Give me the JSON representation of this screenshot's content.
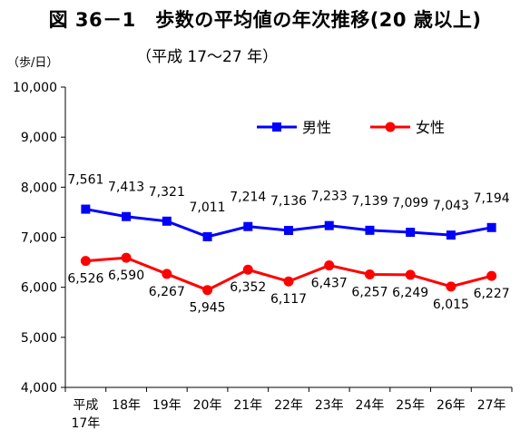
{
  "header": {
    "title": "図 36－1　歩数の平均値の年次推移(20 歳以上)",
    "subtitle": "（平成 17～27 年）",
    "unit": "（歩/日）"
  },
  "chart_data": {
    "type": "line",
    "categories": [
      "平成\n17年",
      "18年",
      "19年",
      "20年",
      "21年",
      "22年",
      "23年",
      "24年",
      "25年",
      "26年",
      "27年"
    ],
    "series": [
      {
        "name": "男性",
        "color": "#0000ff",
        "marker": "square",
        "values": [
          7561,
          7413,
          7321,
          7011,
          7214,
          7136,
          7233,
          7139,
          7099,
          7043,
          7194
        ],
        "labels": [
          "7,561",
          "7,413",
          "7,321",
          "7,011",
          "7,214",
          "7,136",
          "7,233",
          "7,139",
          "7,099",
          "7,043",
          "7,194"
        ]
      },
      {
        "name": "女性",
        "color": "#ff0000",
        "marker": "circle",
        "values": [
          6526,
          6590,
          6267,
          5945,
          6352,
          6117,
          6437,
          6257,
          6249,
          6015,
          6227
        ],
        "labels": [
          "6,526",
          "6,590",
          "6,267",
          "5,945",
          "6,352",
          "6,117",
          "6,437",
          "6,257",
          "6,249",
          "6,015",
          "6,227"
        ]
      }
    ],
    "ylim": [
      4000,
      10000
    ],
    "yticks": [
      4000,
      5000,
      6000,
      7000,
      8000,
      9000,
      10000
    ],
    "ytick_labels": [
      "4,000",
      "5,000",
      "6,000",
      "7,000",
      "8,000",
      "9,000",
      "10,000"
    ],
    "grid": false,
    "legend": "top-right"
  }
}
